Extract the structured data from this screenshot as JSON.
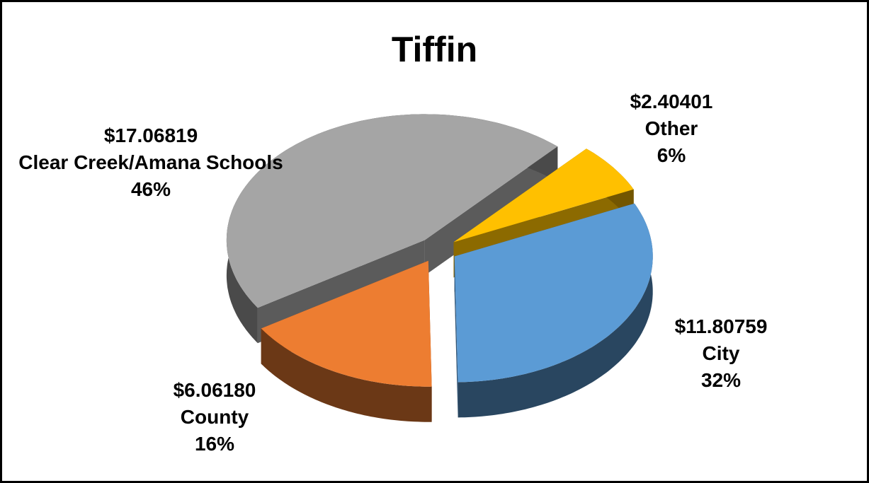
{
  "chart_data": {
    "type": "pie3d",
    "title": "Tiffin",
    "categories": [
      "Other",
      "City",
      "County",
      "Clear Creek/Amana Schools"
    ],
    "values": [
      2.40401,
      11.80759,
      6.0618,
      17.06819
    ],
    "value_labels": [
      "$2.40401",
      "$11.80759",
      "$6.06180",
      "$17.06819"
    ],
    "percents": [
      6,
      32,
      16,
      46
    ],
    "percent_labels": [
      "6%",
      "32%",
      "16%",
      "46%"
    ],
    "colors": [
      "#ffc000",
      "#5b9bd5",
      "#ed7d31",
      "#a5a5a5"
    ]
  }
}
